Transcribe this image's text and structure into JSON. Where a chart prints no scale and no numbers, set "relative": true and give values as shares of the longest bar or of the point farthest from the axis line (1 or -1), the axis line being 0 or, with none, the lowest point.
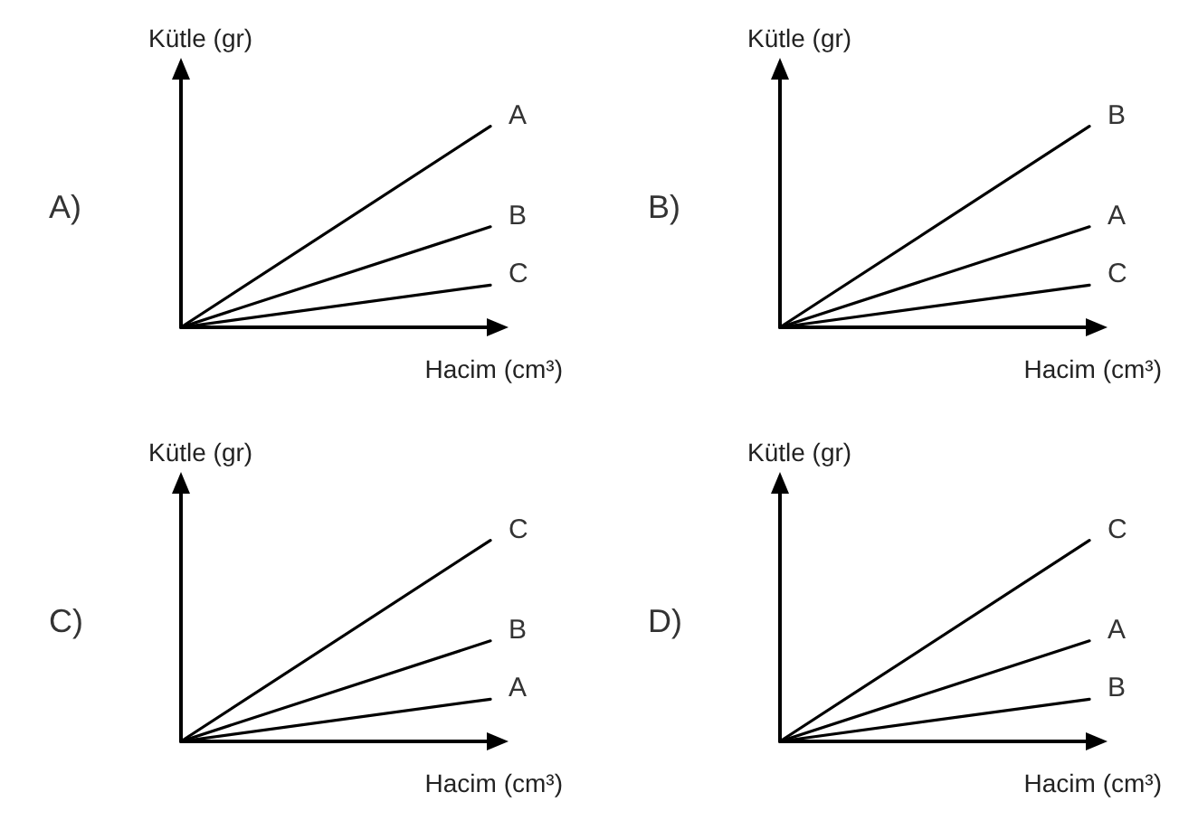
{
  "chart_data": [
    {
      "type": "line",
      "title": "A)",
      "xlabel": "Hacim (cm³)",
      "ylabel": "Kütle (gr)",
      "categories": [
        null,
        null
      ],
      "relative": true,
      "marker": "none",
      "series": [
        {
          "name": "A",
          "color": "#000000",
          "values": [
            0,
            1
          ]
        },
        {
          "name": "B",
          "color": "#000000",
          "values": [
            0,
            0.5
          ]
        },
        {
          "name": "C",
          "color": "#000000",
          "values": [
            0,
            0.21
          ]
        }
      ]
    },
    {
      "type": "line",
      "title": "B)",
      "xlabel": "Hacim (cm³)",
      "ylabel": "Kütle (gr)",
      "categories": [
        null,
        null
      ],
      "relative": true,
      "marker": "none",
      "series": [
        {
          "name": "B",
          "color": "#000000",
          "values": [
            0,
            1
          ]
        },
        {
          "name": "A",
          "color": "#000000",
          "values": [
            0,
            0.5
          ]
        },
        {
          "name": "C",
          "color": "#000000",
          "values": [
            0,
            0.21
          ]
        }
      ]
    },
    {
      "type": "line",
      "title": "C)",
      "xlabel": "Hacim (cm³)",
      "ylabel": "Kütle (gr)",
      "categories": [
        null,
        null
      ],
      "relative": true,
      "marker": "none",
      "series": [
        {
          "name": "C",
          "color": "#000000",
          "values": [
            0,
            1
          ]
        },
        {
          "name": "B",
          "color": "#000000",
          "values": [
            0,
            0.5
          ]
        },
        {
          "name": "A",
          "color": "#000000",
          "values": [
            0,
            0.21
          ]
        }
      ]
    },
    {
      "type": "line",
      "title": "D)",
      "xlabel": "Hacim (cm³)",
      "ylabel": "Kütle (gr)",
      "categories": [
        null,
        null
      ],
      "relative": true,
      "marker": "none",
      "series": [
        {
          "name": "C",
          "color": "#000000",
          "values": [
            0,
            1
          ]
        },
        {
          "name": "A",
          "color": "#000000",
          "values": [
            0,
            0.5
          ]
        },
        {
          "name": "B",
          "color": "#000000",
          "values": [
            0,
            0.21
          ]
        }
      ]
    }
  ]
}
